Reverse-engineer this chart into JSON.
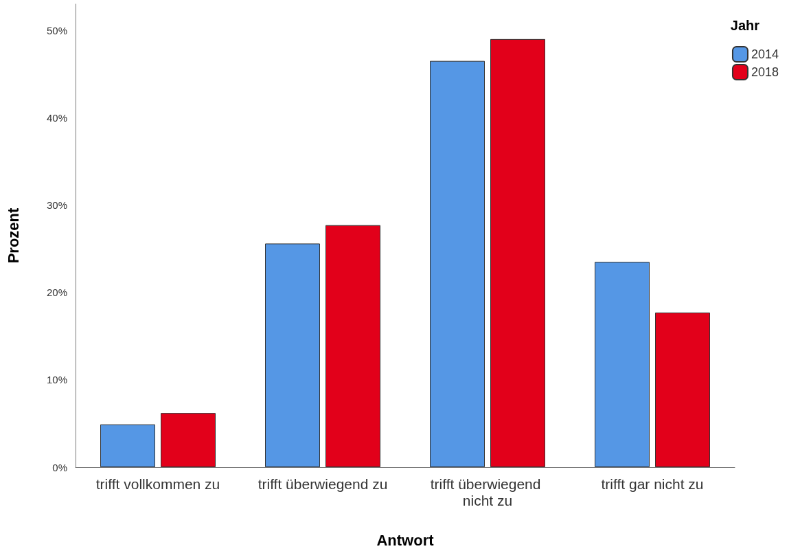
{
  "chart_data": {
    "type": "bar",
    "xlabel": "Antwort",
    "ylabel": "Prozent",
    "legend_title": "Jahr",
    "categories": [
      "trifft vollkommen zu",
      "trifft überwiegend zu",
      "trifft überwiegend nicht zu",
      "trifft gar nicht zu"
    ],
    "series": [
      {
        "name": "2014",
        "color": "#5597e5",
        "values": [
          4.9,
          25.6,
          46.5,
          23.5
        ]
      },
      {
        "name": "2018",
        "color": "#e2001a",
        "values": [
          6.2,
          27.7,
          49.0,
          17.7
        ]
      }
    ],
    "ylim": [
      0,
      53
    ],
    "yticks": [
      {
        "value": 0,
        "label": "0%"
      },
      {
        "value": 10,
        "label": "10%"
      },
      {
        "value": 20,
        "label": "20%"
      },
      {
        "value": 30,
        "label": "30%"
      },
      {
        "value": 40,
        "label": "40%"
      },
      {
        "value": 50,
        "label": "50%"
      }
    ],
    "grid": false,
    "legend": "top right"
  }
}
